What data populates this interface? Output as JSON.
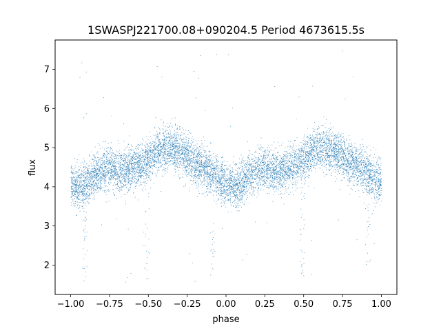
{
  "chart_data": {
    "type": "scatter",
    "title": "1SWASPJ221700.08+090204.5 Period 4673615.5s",
    "xlabel": "phase",
    "ylabel": "flux",
    "xlim": [
      -1.1,
      1.1
    ],
    "ylim": [
      1.25,
      7.75
    ],
    "xticks": [
      -1.0,
      -0.75,
      -0.5,
      -0.25,
      0.0,
      0.25,
      0.5,
      0.75,
      1.0
    ],
    "xtick_labels": [
      "−1.00",
      "−0.75",
      "−0.50",
      "−0.25",
      "0.00",
      "0.25",
      "0.50",
      "0.75",
      "1.00"
    ],
    "yticks": [
      2,
      3,
      4,
      5,
      6,
      7
    ],
    "ytick_labels": [
      "2",
      "3",
      "4",
      "5",
      "6",
      "7"
    ],
    "grid": false,
    "marker_color": "#1f77b4",
    "series": [
      {
        "x": [
          -1.0,
          -0.95,
          -0.9,
          -0.85,
          -0.8,
          -0.75,
          -0.7,
          -0.65,
          -0.6,
          -0.55,
          -0.5,
          -0.45,
          -0.4,
          -0.35,
          -0.3,
          -0.25,
          -0.2,
          -0.15,
          -0.1,
          -0.05,
          0.0,
          0.05,
          0.1,
          0.15,
          0.2,
          0.25,
          0.3,
          0.35,
          0.4,
          0.45,
          0.5,
          0.55,
          0.6,
          0.65,
          0.7,
          0.75,
          0.8,
          0.85,
          0.9,
          0.95,
          1.0
        ],
        "y": [
          4.1,
          4.0,
          4.1,
          4.3,
          4.4,
          4.5,
          4.4,
          4.4,
          4.5,
          4.6,
          4.7,
          4.9,
          5.0,
          5.0,
          4.9,
          4.8,
          4.6,
          4.5,
          4.4,
          4.2,
          4.1,
          4.0,
          4.1,
          4.3,
          4.4,
          4.5,
          4.4,
          4.4,
          4.5,
          4.6,
          4.7,
          4.9,
          5.0,
          5.0,
          4.9,
          4.8,
          4.6,
          4.5,
          4.4,
          4.2,
          4.1
        ]
      }
    ]
  }
}
